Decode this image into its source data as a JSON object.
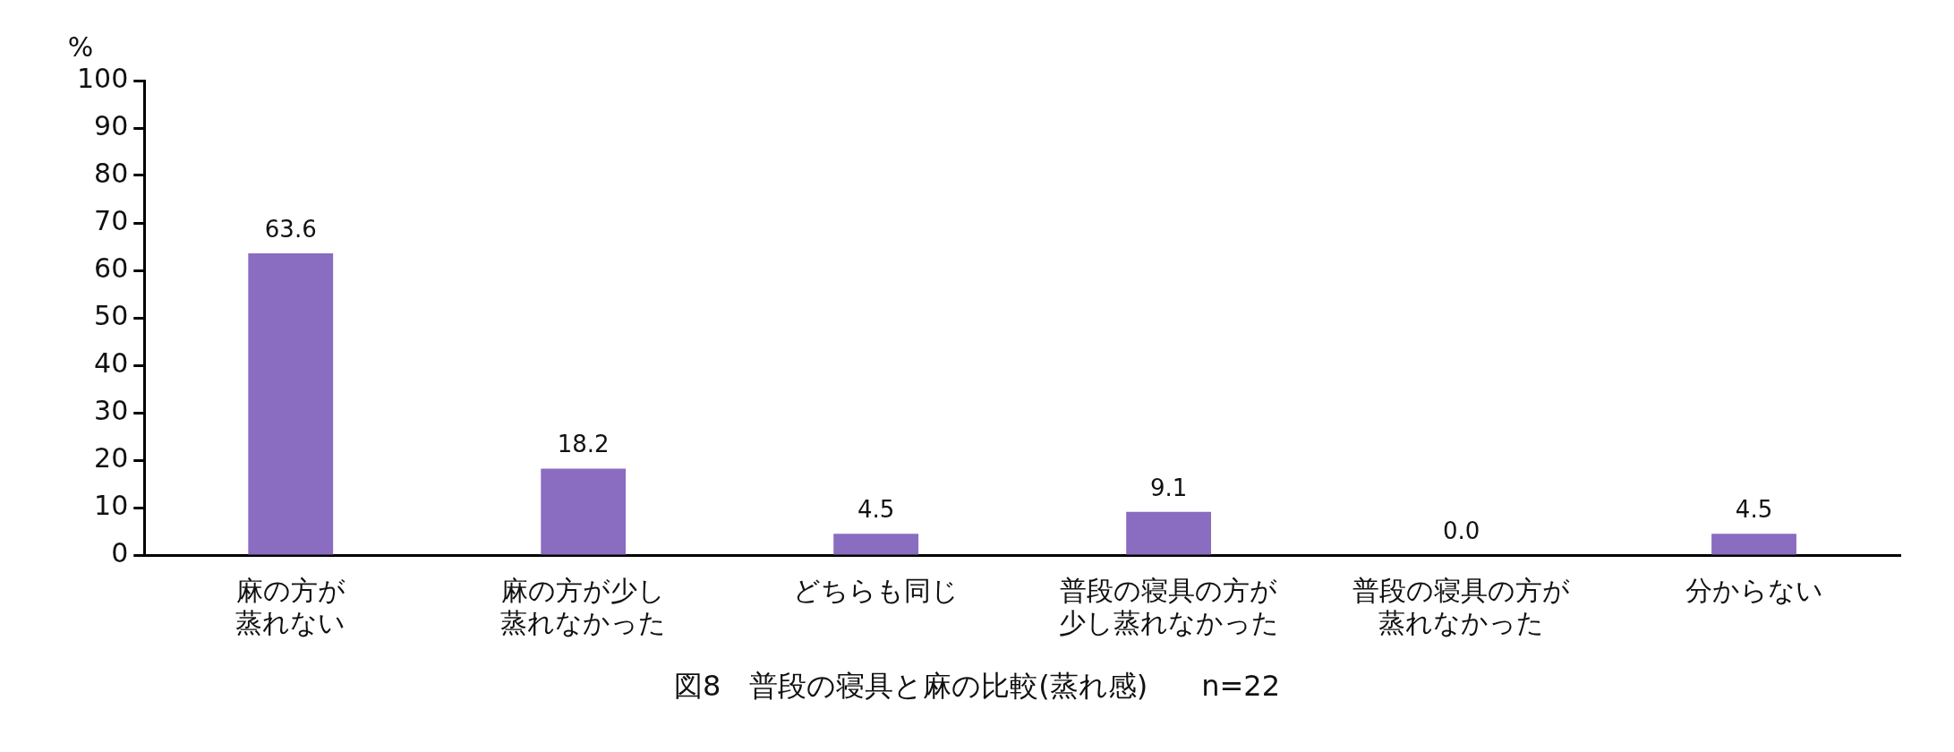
{
  "chart_data": {
    "type": "bar",
    "title": "図8　普段の寝具と麻の比較(蒸れ感)",
    "ylabel": "%",
    "annotations": [
      "n=22"
    ],
    "categories": [
      "麻の方が蒸れない",
      "麻の方が少し蒸れなかった",
      "どちらも同じ",
      "普段の寝具の方が少し蒸れなかった",
      "普段の寝具の方が蒸れなかった",
      "分からない"
    ],
    "values": [
      63.6,
      18.2,
      4.5,
      9.1,
      0.0,
      4.5
    ],
    "value_labels": [
      "63.6",
      "18.2",
      "4.5",
      "9.1",
      "0.0",
      "4.5"
    ],
    "color": "#8a6cc0",
    "ylim": [
      0,
      100
    ],
    "yticks": [
      0,
      10,
      20,
      30,
      40,
      50,
      60,
      70,
      80,
      90,
      100
    ],
    "grid": false,
    "legend": false
  }
}
